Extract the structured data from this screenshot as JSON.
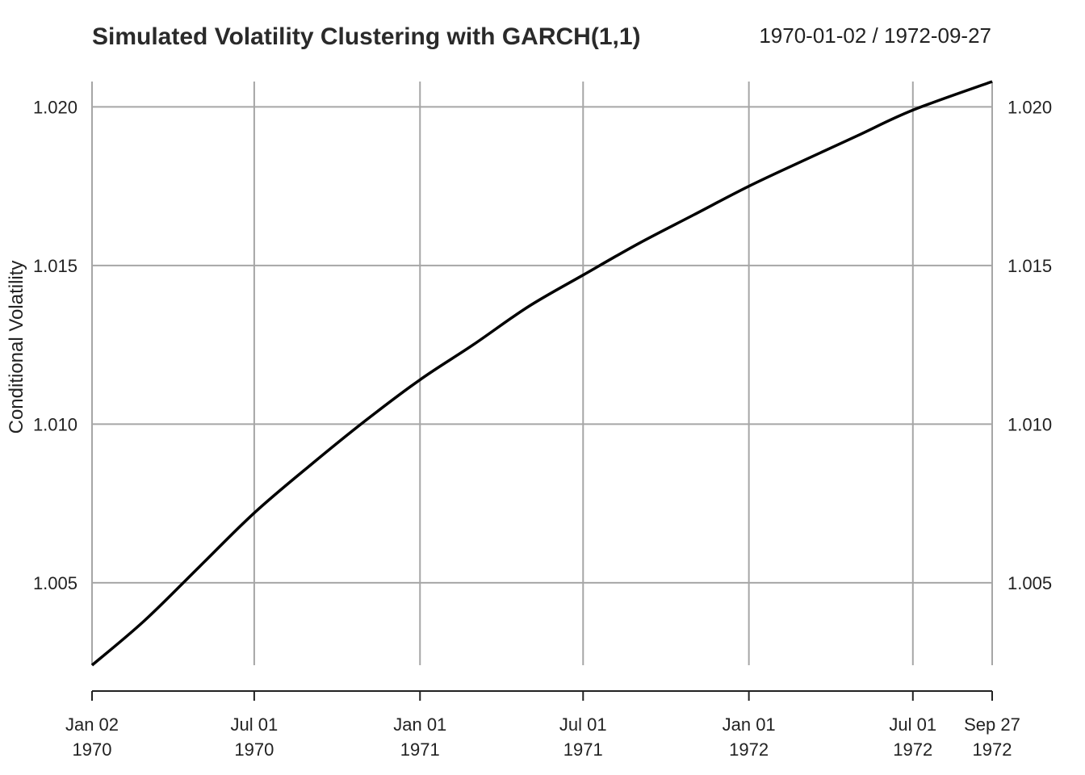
{
  "chart_data": {
    "type": "line",
    "title": "Simulated Volatility Clustering with GARCH(1,1)",
    "date_range": "1970-01-02 / 1972-09-27",
    "ylabel": "Conditional Volatility",
    "xlabel": "",
    "xlim": [
      "1970-01-02",
      "1972-09-27"
    ],
    "ylim": [
      1.0024,
      1.0208
    ],
    "grid": true,
    "y_ticks": [
      {
        "value": 1.005,
        "label": "1.005"
      },
      {
        "value": 1.01,
        "label": "1.010"
      },
      {
        "value": 1.015,
        "label": "1.015"
      },
      {
        "value": 1.02,
        "label": "1.020"
      }
    ],
    "x_ticks": [
      {
        "date": "1970-01-02",
        "label": "Jan 02",
        "year": "1970"
      },
      {
        "date": "1970-07-01",
        "label": "Jul 01",
        "year": "1970"
      },
      {
        "date": "1971-01-01",
        "label": "Jan 01",
        "year": "1971"
      },
      {
        "date": "1971-07-01",
        "label": "Jul 01",
        "year": "1971"
      },
      {
        "date": "1972-01-01",
        "label": "Jan 01",
        "year": "1972"
      },
      {
        "date": "1972-07-01",
        "label": "Jul 01",
        "year": "1972"
      },
      {
        "date": "1972-09-27",
        "label": "Sep 27",
        "year": "1972"
      }
    ],
    "series": [
      {
        "color": "#000000",
        "points": [
          {
            "x": "1970-01-02",
            "y": 1.0024
          },
          {
            "x": "1970-03-01",
            "y": 1.0038
          },
          {
            "x": "1970-05-01",
            "y": 1.0055
          },
          {
            "x": "1970-07-01",
            "y": 1.0072
          },
          {
            "x": "1970-09-01",
            "y": 1.0087
          },
          {
            "x": "1970-11-01",
            "y": 1.0101
          },
          {
            "x": "1971-01-01",
            "y": 1.0114
          },
          {
            "x": "1971-03-01",
            "y": 1.0125
          },
          {
            "x": "1971-05-01",
            "y": 1.0137
          },
          {
            "x": "1971-07-01",
            "y": 1.0147
          },
          {
            "x": "1971-09-01",
            "y": 1.0157
          },
          {
            "x": "1971-11-01",
            "y": 1.0166
          },
          {
            "x": "1972-01-01",
            "y": 1.0175
          },
          {
            "x": "1972-03-01",
            "y": 1.0183
          },
          {
            "x": "1972-05-01",
            "y": 1.0191
          },
          {
            "x": "1972-07-01",
            "y": 1.0199
          },
          {
            "x": "1972-09-27",
            "y": 1.0208
          }
        ]
      }
    ]
  }
}
